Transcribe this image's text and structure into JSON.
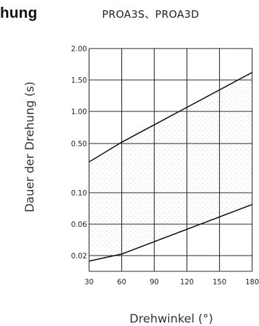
{
  "heading": "hung",
  "model": "PROA3S、PROA3D",
  "chart_data": {
    "type": "line",
    "title": "PROA3S、PROA3D",
    "xlabel": "Drehwinkel (°)",
    "ylabel": "Dauer der Drehung (s)",
    "x_ticks": [
      30,
      60,
      90,
      120,
      150,
      180
    ],
    "y_ticks": [
      "2.00",
      "1.50",
      "1.00",
      "0.50",
      "0.10",
      "0.06",
      "0.02"
    ],
    "xlim": [
      30,
      180
    ],
    "y_scale": "categorical-gridlines (non-linear)",
    "grid": true,
    "shaded_region": "between upper and lower line (dotted)",
    "series": [
      {
        "values": [
          {
            "x": 30,
            "y": 0.35
          },
          {
            "x": 60,
            "y": 0.52
          },
          {
            "x": 180,
            "y": 1.62
          }
        ]
      },
      {
        "values": [
          {
            "x": 30,
            "y": 0.013
          },
          {
            "x": 60,
            "y": 0.022
          },
          {
            "x": 180,
            "y": 0.085
          }
        ]
      }
    ]
  }
}
